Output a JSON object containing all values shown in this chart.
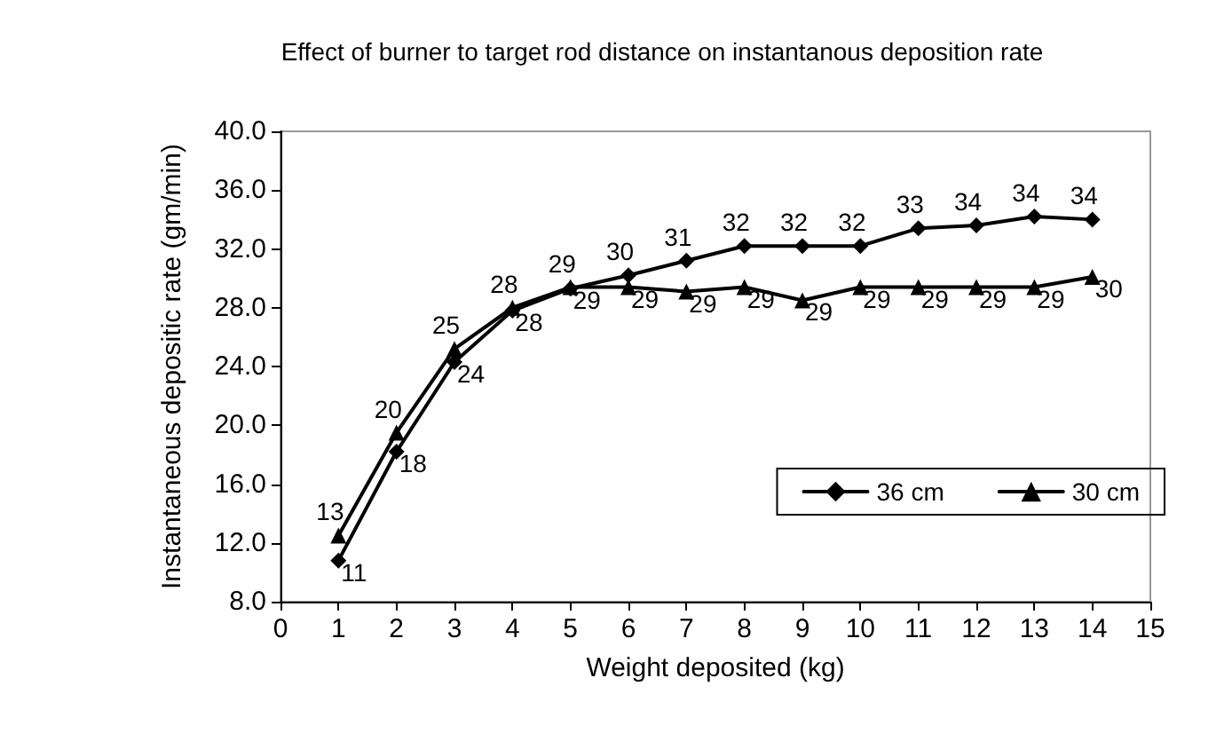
{
  "chart_data": {
    "type": "line",
    "title": "Effect of burner to target rod distance on instantanous deposition rate",
    "xlabel": "Weight deposited (kg)",
    "ylabel": "Instantaneous depositic rate (gm/min)",
    "x": [
      1,
      2,
      3,
      4,
      5,
      6,
      7,
      8,
      9,
      10,
      11,
      12,
      13,
      14
    ],
    "series": [
      {
        "name": "36 cm",
        "color": "#000000",
        "marker": "diamond",
        "values": [
          10.8,
          18.2,
          24.3,
          27.8,
          29.3,
          30.2,
          31.2,
          32.2,
          32.2,
          32.2,
          33.4,
          33.6,
          34.2,
          34.0
        ],
        "value_labels": [
          "11",
          "18",
          "24",
          "28",
          "29",
          "30",
          "31",
          "32",
          "32",
          "32",
          "33",
          "34",
          "34",
          "34"
        ]
      },
      {
        "name": "30 cm",
        "color": "#000000",
        "marker": "triangle",
        "values": [
          12.5,
          19.5,
          25.2,
          28.0,
          29.4,
          29.4,
          29.1,
          29.4,
          28.5,
          29.4,
          29.4,
          29.4,
          29.4,
          30.1
        ],
        "value_labels": [
          "13",
          "20",
          "25",
          "28",
          "29",
          "29",
          "29",
          "29",
          "29",
          "29",
          "29",
          "29",
          "29",
          "30"
        ]
      }
    ],
    "xlim": [
      0,
      15
    ],
    "xticks": [
      0,
      1,
      2,
      3,
      4,
      5,
      6,
      7,
      8,
      9,
      10,
      11,
      12,
      13,
      14,
      15
    ],
    "ylim": [
      8,
      40
    ],
    "yticks": [
      {
        "value": 8,
        "label": "8.0"
      },
      {
        "value": 12,
        "label": "12.0"
      },
      {
        "value": 16,
        "label": "16.0"
      },
      {
        "value": 20,
        "label": "20.0"
      },
      {
        "value": 24,
        "label": "24.0"
      },
      {
        "value": 28,
        "label": "28.0"
      },
      {
        "value": 32,
        "label": "32.0"
      },
      {
        "value": 36,
        "label": "36.0"
      },
      {
        "value": 40,
        "label": "40.0"
      }
    ],
    "grid": false,
    "legend": "bottom right",
    "line_style": "solid"
  }
}
